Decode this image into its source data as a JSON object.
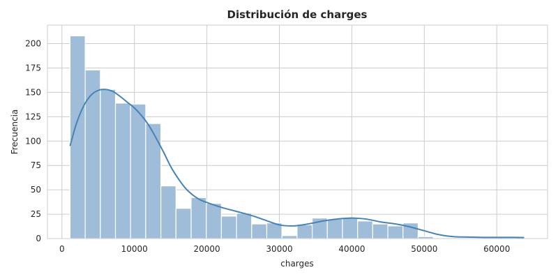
{
  "chart_data": {
    "type": "bar",
    "title": "Distribución de charges",
    "xlabel": "charges",
    "ylabel": "Frecuencia",
    "xlim": [
      -2000,
      67000
    ],
    "ylim": [
      0,
      219
    ],
    "xticks": [
      0,
      10000,
      20000,
      30000,
      40000,
      50000,
      60000
    ],
    "xtick_labels": [
      "0",
      "10000",
      "20000",
      "30000",
      "40000",
      "50000",
      "60000"
    ],
    "yticks": [
      0,
      25,
      50,
      75,
      100,
      125,
      150,
      175,
      200
    ],
    "ytick_labels": [
      "0",
      "25",
      "50",
      "75",
      "100",
      "125",
      "150",
      "175",
      "200"
    ],
    "grid": true,
    "bar_color": "#9fbdd8",
    "bar_edge_color": "#ffffff",
    "kde_color": "#4682b4",
    "bins": [
      {
        "x0": 1122,
        "x1": 3210,
        "count": 208
      },
      {
        "x0": 3210,
        "x1": 5298,
        "count": 173
      },
      {
        "x0": 5298,
        "x1": 7386,
        "count": 153
      },
      {
        "x0": 7386,
        "x1": 9474,
        "count": 139
      },
      {
        "x0": 9474,
        "x1": 11562,
        "count": 138
      },
      {
        "x0": 11562,
        "x1": 13650,
        "count": 118
      },
      {
        "x0": 13650,
        "x1": 15738,
        "count": 54
      },
      {
        "x0": 15738,
        "x1": 17826,
        "count": 31
      },
      {
        "x0": 17826,
        "x1": 19914,
        "count": 42
      },
      {
        "x0": 19914,
        "x1": 22002,
        "count": 36
      },
      {
        "x0": 22002,
        "x1": 24090,
        "count": 23
      },
      {
        "x0": 24090,
        "x1": 26178,
        "count": 26
      },
      {
        "x0": 26178,
        "x1": 28266,
        "count": 15
      },
      {
        "x0": 28266,
        "x1": 30354,
        "count": 16
      },
      {
        "x0": 30354,
        "x1": 32442,
        "count": 3
      },
      {
        "x0": 32442,
        "x1": 34530,
        "count": 14
      },
      {
        "x0": 34530,
        "x1": 36618,
        "count": 21
      },
      {
        "x0": 36618,
        "x1": 38706,
        "count": 20
      },
      {
        "x0": 38706,
        "x1": 40794,
        "count": 21
      },
      {
        "x0": 40794,
        "x1": 42882,
        "count": 18
      },
      {
        "x0": 42882,
        "x1": 44970,
        "count": 15
      },
      {
        "x0": 44970,
        "x1": 47058,
        "count": 13
      },
      {
        "x0": 47058,
        "x1": 49146,
        "count": 16
      },
      {
        "x0": 49146,
        "x1": 51234,
        "count": 2
      },
      {
        "x0": 51234,
        "x1": 53322,
        "count": 0
      },
      {
        "x0": 53322,
        "x1": 55410,
        "count": 0
      },
      {
        "x0": 55410,
        "x1": 57498,
        "count": 0
      },
      {
        "x0": 57498,
        "x1": 59586,
        "count": 0
      },
      {
        "x0": 59586,
        "x1": 61674,
        "count": 1
      },
      {
        "x0": 61674,
        "x1": 63770,
        "count": 1
      }
    ],
    "kde": {
      "x": [
        1122,
        2000,
        3000,
        4000,
        5000,
        6000,
        7000,
        8000,
        9000,
        10000,
        11000,
        12000,
        13000,
        14000,
        15000,
        16000,
        17000,
        18000,
        19000,
        20000,
        22000,
        24000,
        26000,
        28000,
        30000,
        32000,
        34000,
        36000,
        38000,
        40000,
        42000,
        44000,
        46000,
        48000,
        50000,
        52000,
        54000,
        56000,
        58000,
        60000,
        62000,
        63770
      ],
      "y": [
        95,
        118,
        136,
        147,
        152,
        153,
        151,
        146,
        140,
        134,
        126,
        116,
        103,
        89,
        74,
        62,
        52,
        45,
        40,
        37,
        32,
        28,
        24,
        19,
        14,
        13,
        15,
        18,
        20,
        21,
        20,
        17,
        15,
        12,
        8,
        4,
        2,
        1.5,
        1.2,
        1.2,
        1.2,
        1
      ]
    }
  }
}
